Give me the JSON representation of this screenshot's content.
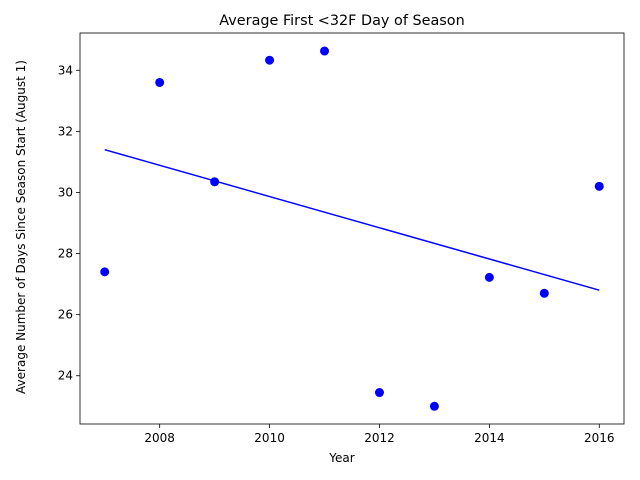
{
  "chart_data": {
    "type": "scatter",
    "title": "Average First <32F Day of Season",
    "xlabel": "Year",
    "ylabel": "Average Number of Days Since Season Start (August 1)",
    "xlim": [
      2006.55,
      2016.45
    ],
    "ylim": [
      22.42,
      35.22
    ],
    "xticks": [
      2008,
      2010,
      2012,
      2014,
      2016
    ],
    "yticks": [
      24,
      26,
      28,
      30,
      32,
      34
    ],
    "grid": false,
    "legend": "none",
    "series": [
      {
        "kind": "points",
        "color": "#0000ff",
        "x": [
          2007,
          2008,
          2009,
          2010,
          2011,
          2012,
          2013,
          2014,
          2015,
          2016
        ],
        "y": [
          27.4,
          33.6,
          30.35,
          34.33,
          34.63,
          23.45,
          23.0,
          27.22,
          26.7,
          30.2
        ]
      },
      {
        "kind": "trend-line",
        "color": "#0000ff",
        "x": [
          2007,
          2016
        ],
        "y": [
          31.4,
          26.8
        ]
      }
    ]
  }
}
